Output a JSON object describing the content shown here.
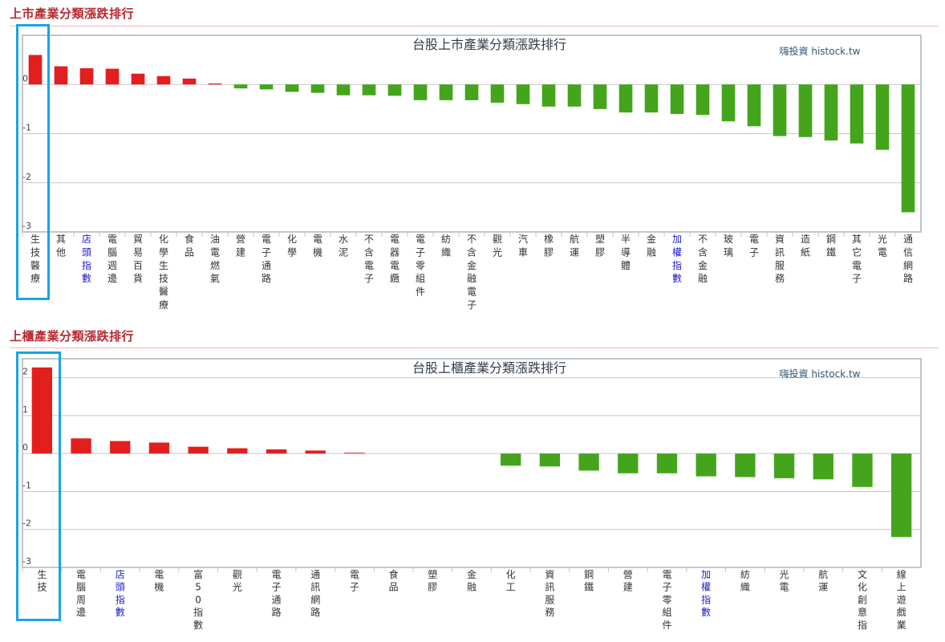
{
  "sections": [
    {
      "heading": "上市產業分類漲跌排行"
    },
    {
      "heading": "上櫃產業分類漲跌排行"
    }
  ],
  "colors": {
    "up": "#e31e1e",
    "down": "#44a51c",
    "link": "#1a1acc",
    "label": "#333333",
    "highlight": "#1aa3e6"
  },
  "chart_data": [
    {
      "type": "bar",
      "title": "台股上市產業分類漲跌排行",
      "credit": "嗨投資 histock.tw",
      "xlabel": "",
      "ylabel": "",
      "ylim": [
        -3,
        1
      ],
      "yticks": [
        0,
        -1,
        -2,
        -3
      ],
      "grid": true,
      "categories": [
        "生技醫療",
        "其他",
        "店頭指數",
        "電腦週邊",
        "貿易百貨",
        "化學生技醫療",
        "食品",
        "油電燃氣",
        "營建",
        "電子通路",
        "化學",
        "電機",
        "水泥",
        "不含電子",
        "電器電纜",
        "電子零組件",
        "紡織",
        "不含金融電子",
        "觀光",
        "汽車",
        "橡膠",
        "航運",
        "塑膠",
        "半導體",
        "金融",
        "加權指數",
        "不含金融",
        "玻璃",
        "電子",
        "資訊服務",
        "造紙",
        "鋼鐵",
        "其它電子",
        "光電",
        "通信網路"
      ],
      "index_categories": [
        "店頭指數",
        "加權指數"
      ],
      "values": [
        0.6,
        0.37,
        0.33,
        0.32,
        0.22,
        0.17,
        0.12,
        0.02,
        -0.08,
        -0.1,
        -0.15,
        -0.17,
        -0.22,
        -0.22,
        -0.23,
        -0.32,
        -0.32,
        -0.32,
        -0.37,
        -0.4,
        -0.45,
        -0.45,
        -0.5,
        -0.57,
        -0.57,
        -0.6,
        -0.62,
        -0.75,
        -0.85,
        -1.05,
        -1.07,
        -1.14,
        -1.2,
        -1.33,
        -2.6
      ]
    },
    {
      "type": "bar",
      "title": "台股上櫃產業分類漲跌排行",
      "credit": "嗨投資 histock.tw",
      "xlabel": "",
      "ylabel": "",
      "ylim": [
        -3,
        2.5
      ],
      "yticks": [
        2,
        1,
        0,
        -1,
        -2,
        -3
      ],
      "grid": true,
      "categories": [
        "生技",
        "電腦周邊",
        "店頭指數",
        "電機",
        "富50指數",
        "觀光",
        "電子通路",
        "通訊網路",
        "電子",
        "食品",
        "塑膠",
        "金融",
        "化工",
        "資訊服務",
        "鋼鐵",
        "營建",
        "電子零組件",
        "加權指數",
        "紡織",
        "光電",
        "航運",
        "文化創意指",
        "線上遊戲業"
      ],
      "index_categories": [
        "店頭指數",
        "加權指數"
      ],
      "values": [
        2.27,
        0.4,
        0.33,
        0.29,
        0.18,
        0.14,
        0.11,
        0.08,
        0.02,
        0.0,
        0.0,
        0.0,
        -0.32,
        -0.34,
        -0.45,
        -0.52,
        -0.52,
        -0.6,
        -0.62,
        -0.65,
        -0.68,
        -0.88,
        -2.2
      ]
    }
  ]
}
